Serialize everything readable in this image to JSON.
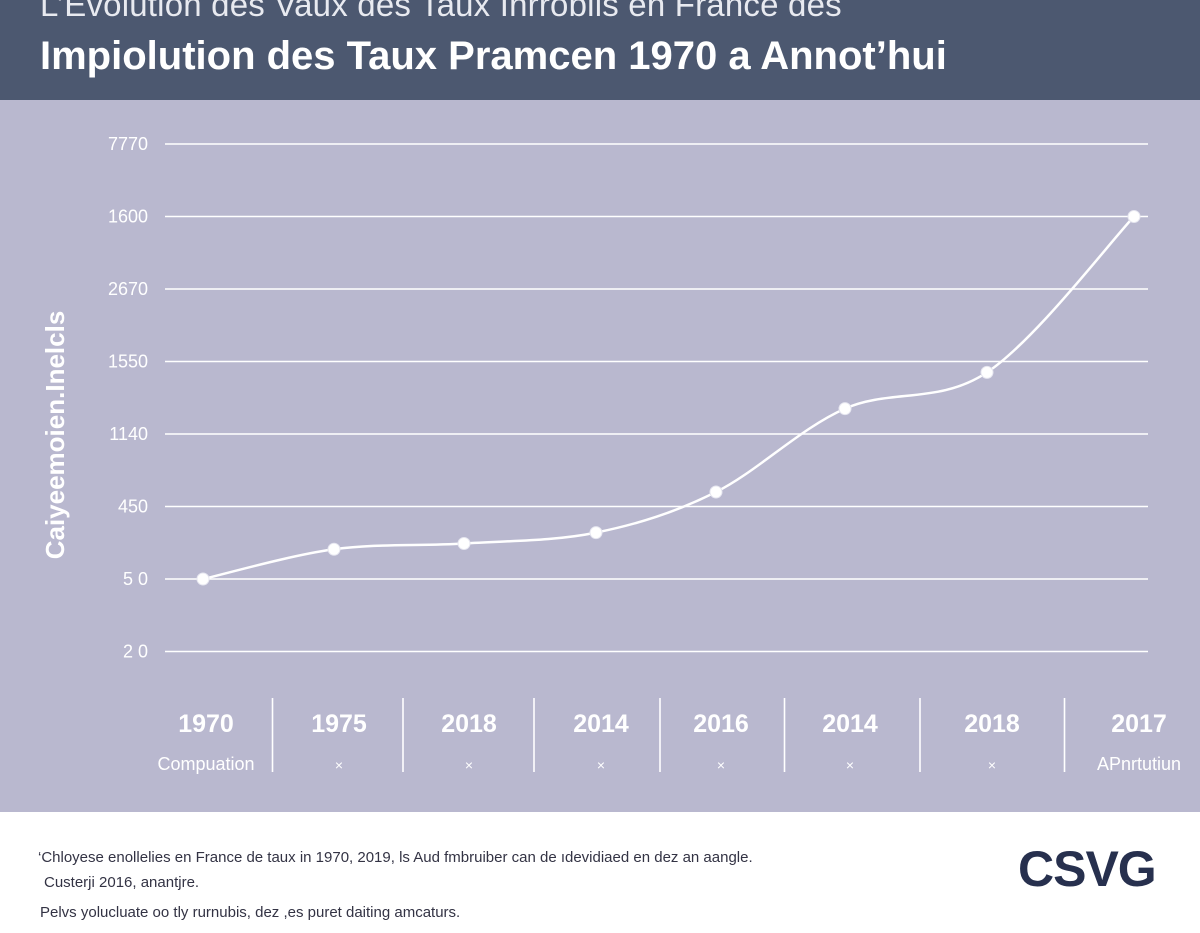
{
  "header": {
    "supertitle": "L’Évolution des Vaux des Taux Inrroblis en France des",
    "title": "Impiolution des Taux Pramcen 1970 a Annot’hui"
  },
  "chart_data": {
    "type": "line",
    "title": "Impiolution des Taux Pramcen 1970 a Annot’hui",
    "ylabel": "Caiyeemoien.Inelcls",
    "y_ticks": [
      "7770",
      "1600",
      "2670",
      "1550",
      "1140",
      "450",
      "5 0",
      "2 0"
    ],
    "categories": [
      "1970",
      "1975",
      "2018",
      "2014",
      "2016",
      "2014",
      "2018",
      "2017"
    ],
    "sublabels": [
      "Compuation",
      "×",
      "×",
      "×",
      "×",
      "×",
      "×",
      "APnrtutiun"
    ],
    "series": [
      {
        "values": [
          0,
          0.41,
          0.49,
          0.64,
          1.2,
          2.35,
          2.85,
          5.0
        ]
      }
    ],
    "value_scale": "tick rows (0 = '5 0' line, 5 = '1600' line)",
    "grid": true,
    "colors": {
      "line": "#ffffff",
      "grid": "#ffffff",
      "background": "#b9b8cf",
      "text": "#ffffff"
    }
  },
  "footer": {
    "note_line1": "‘Chloyese enollelies en France de taux in 1970, 2019, ls Aud fmbruiber can de ıdevidiaed en dez an aangle.",
    "note_line2": "Custerji 2016, anantjre.",
    "note_line3": "Pelvs yolucluate oo tly rurnubis, dez ,es puret daiting amcaturs.",
    "logo": "CSVG"
  }
}
